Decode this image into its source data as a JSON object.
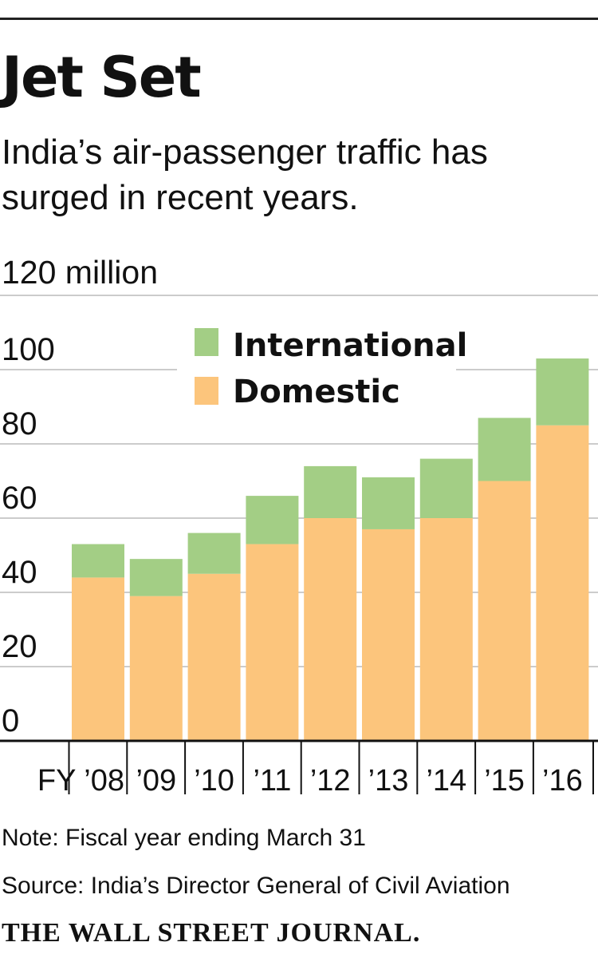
{
  "header": {
    "title": "Jet Set",
    "subtitle": "India’s air-passenger traffic has surged in recent years."
  },
  "footer": {
    "note": "Note: Fiscal year ending March 31",
    "source": "Source: India’s Director General of Civil Aviation",
    "brand": "THE WALL STREET JOURNAL."
  },
  "colors": {
    "international": "#a3ce85",
    "domestic": "#fcc57c",
    "grid": "#cccccc",
    "axis": "#111111"
  },
  "chart_data": {
    "type": "bar",
    "stacked": true,
    "categories": [
      "FY ’08",
      "’09",
      "’10",
      "’11",
      "’12",
      "’13",
      "’14",
      "’15",
      "’16"
    ],
    "series": [
      {
        "name": "Domestic",
        "values": [
          44,
          39,
          45,
          53,
          60,
          57,
          60,
          70,
          85
        ]
      },
      {
        "name": "International",
        "values": [
          9,
          10,
          11,
          13,
          14,
          14,
          16,
          17,
          18
        ]
      }
    ],
    "ylim": [
      0,
      120
    ],
    "yticks": [
      0,
      20,
      40,
      60,
      80,
      100,
      120
    ],
    "ytick_labels": [
      "0",
      "20",
      "40",
      "60",
      "80",
      "100",
      "120 million"
    ],
    "grid": true,
    "legend": [
      "International",
      "Domestic"
    ],
    "legend_position": "top-center"
  }
}
